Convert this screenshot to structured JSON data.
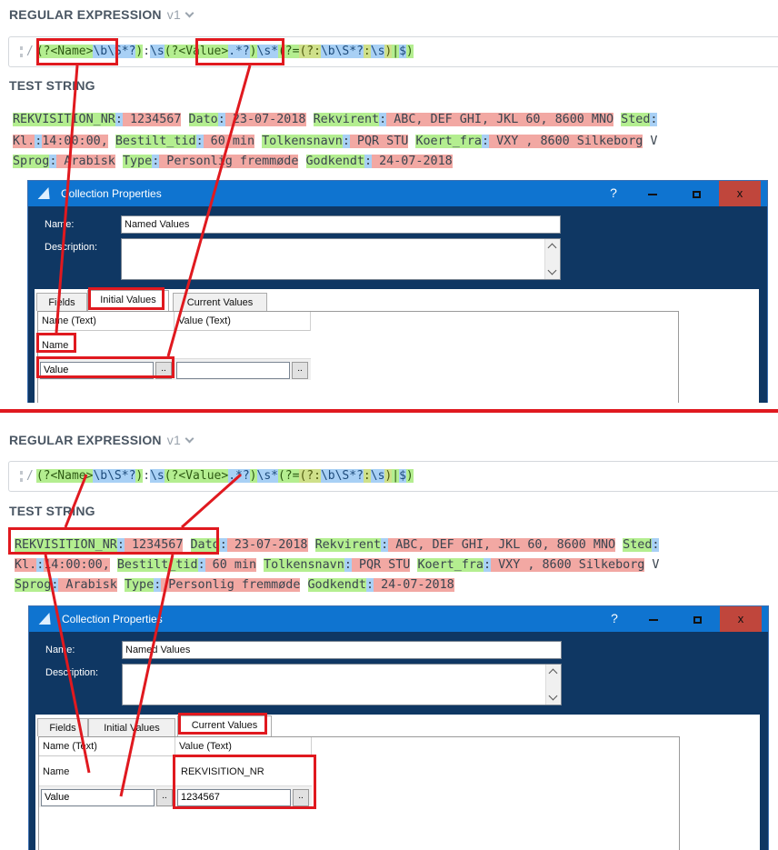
{
  "colors": {
    "annotation_red": "#e0191f",
    "key_green": "#b4ee90",
    "value_red": "#f2a8a3",
    "sep_blue": "#a8d0f5",
    "dialog_title_blue": "#0f74d0",
    "dialog_body_navy": "#0f3763"
  },
  "regex_section": {
    "label": "REGULAR EXPRESSION",
    "version": "v1",
    "delimiter": "/"
  },
  "regex": {
    "t1": "(?<Name>",
    "t2": "\\b\\S*?",
    "t3": ")",
    "t4": ":",
    "t5": "\\s",
    "t6": "(?<Value>",
    "t7": ".*?",
    "t8": ")",
    "t9": "\\s*",
    "t10": "(?=",
    "t11": "(?:",
    "t12": "\\b\\S*?",
    "t13": ":",
    "t14": "\\s",
    "t15": ")",
    "t16": "|",
    "t17": "$",
    "t18": ")"
  },
  "test_section": {
    "label": "TEST STRING"
  },
  "test_lines": {
    "l1": {
      "k1": "REKVISITION_NR",
      "s1": ":",
      "v1": " 1234567",
      "gap1": " ",
      "k2": "Dato",
      "s2": ":",
      "v2": " 23-07-2018",
      "gap2": " ",
      "k3": "Rekvirent",
      "s3": ":",
      "v3": " ABC, DEF GHI, JKL 60, 8600 MNO",
      "gap3": " ",
      "k4": "Sted",
      "s4": ":"
    },
    "l2": {
      "a": "Kl.",
      "as": ":",
      "av": "14:00:00,",
      "gap0": " ",
      "k1": "Bestilt_tid",
      "s1": ":",
      "v1": " 60 min",
      "gap1": " ",
      "k2": "Tolkensnavn",
      "s2": ":",
      "v2": " PQR STU",
      "gap2": " ",
      "k3": "Koert_fra",
      "s3": ":",
      "v3": " VXY , 8600 Silkeborg",
      "tail": " V"
    },
    "l3": {
      "k1": "Sprog",
      "s1": ":",
      "v1": " Arabisk",
      "gap1": " ",
      "k2": "Type",
      "s2": ":",
      "v2": " Personlig fremmøde",
      "gap2": " ",
      "k3": "Godkendt",
      "s3": ":",
      "v3": " 24-07-2018"
    }
  },
  "dialog": {
    "title": "Collection Properties",
    "help": "?",
    "close_glyph": "x",
    "name_label": "Name:",
    "name_value": "Named Values",
    "description_label": "Description:",
    "tabs": {
      "fields": "Fields",
      "initial": "Initial Values",
      "current": "Current Values"
    },
    "columns": {
      "name": "Name  (Text)",
      "value": "Value  (Text)"
    },
    "row_name": "Name",
    "row_value": "Value",
    "ellipsis": "..",
    "current_name_result": "REKVISITION_NR",
    "current_value_result": "1234567"
  }
}
